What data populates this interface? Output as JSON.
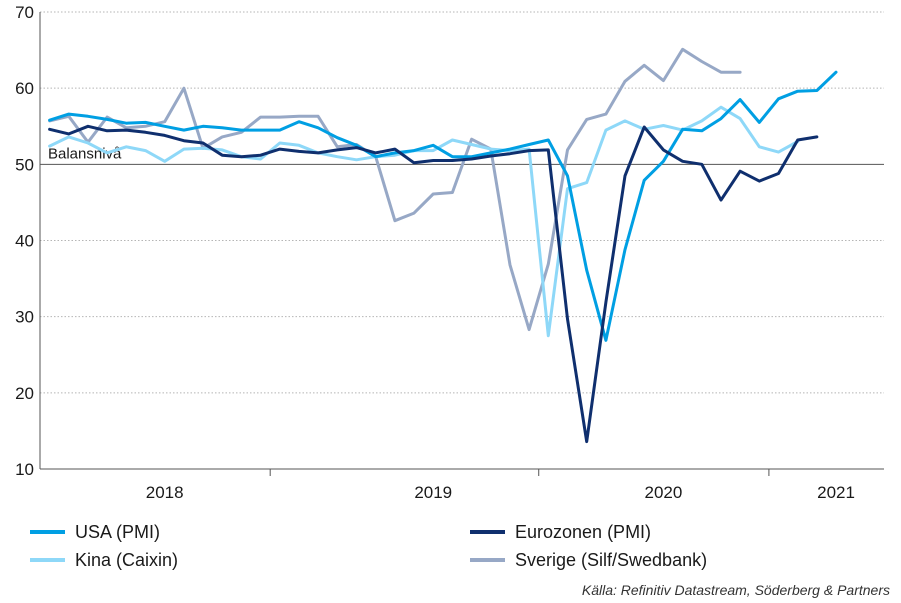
{
  "chart_data": {
    "type": "line",
    "ylim": [
      10,
      70
    ],
    "yticks": [
      10,
      20,
      30,
      40,
      50,
      60,
      70
    ],
    "x_start_month": "2017-10",
    "n_months": 44,
    "year_labels": [
      {
        "label": "2018",
        "center_month": "2018-04"
      },
      {
        "label": "2019",
        "center_month": "2019-06"
      },
      {
        "label": "2020",
        "center_month": "2020-06"
      },
      {
        "label": "2021",
        "center_month": "2021-03"
      }
    ],
    "year_dividers": [
      "2018-10",
      "2019-12",
      "2020-12"
    ],
    "grid": "horizontal dotted",
    "reference_line": {
      "value": 50,
      "label": "Balansnivå"
    },
    "series": [
      {
        "name": "USA (PMI)",
        "color": "#009fe3",
        "values": [
          55.8,
          56.6,
          56.3,
          55.9,
          55.4,
          55.5,
          55.0,
          54.5,
          55.0,
          54.8,
          54.5,
          54.5,
          54.5,
          55.6,
          54.8,
          53.5,
          52.5,
          51.0,
          51.5,
          51.8,
          52.5,
          51.0,
          51.0,
          51.5,
          52.0,
          52.6,
          53.2,
          48.5,
          36.1,
          26.9,
          38.8,
          47.9,
          50.4,
          54.6,
          54.4,
          56.0,
          58.5,
          55.5,
          58.6,
          59.6,
          59.7,
          62.1,
          null,
          null
        ]
      },
      {
        "name": "Eurozonen (PMI)",
        "color": "#0f2f6e",
        "values": [
          54.6,
          54.0,
          55.0,
          54.4,
          54.5,
          54.2,
          53.8,
          53.1,
          52.8,
          51.2,
          51.0,
          51.2,
          52.0,
          51.7,
          51.5,
          51.9,
          52.2,
          51.5,
          52.0,
          50.2,
          50.5,
          50.5,
          50.7,
          51.1,
          51.4,
          51.8,
          51.9,
          29.7,
          13.6,
          31.9,
          48.5,
          54.9,
          51.9,
          50.4,
          50.0,
          45.3,
          49.1,
          47.8,
          48.8,
          53.2,
          53.6,
          null,
          null,
          null
        ]
      },
      {
        "name": "Kina (Caixin)",
        "color": "#8ed8f8",
        "values": [
          52.4,
          53.6,
          52.8,
          51.5,
          52.3,
          51.8,
          50.4,
          52.0,
          52.1,
          51.9,
          51.0,
          50.7,
          52.8,
          52.5,
          51.5,
          51.0,
          50.6,
          51.0,
          51.2,
          51.8,
          51.8,
          53.2,
          52.6,
          52.0,
          51.8,
          52.0,
          27.5,
          46.8,
          47.6,
          54.5,
          55.7,
          54.6,
          55.1,
          54.5,
          55.7,
          57.5,
          56.0,
          52.3,
          51.6,
          53.0,
          null,
          null,
          null,
          null
        ]
      },
      {
        "name": "Sverige (Silf/Swedbank)",
        "color": "#97a8c6",
        "values": [
          55.7,
          56.3,
          52.9,
          56.2,
          54.8,
          55.0,
          55.6,
          60.0,
          52.1,
          53.6,
          54.2,
          56.2,
          56.2,
          56.3,
          56.3,
          52.3,
          52.6,
          51.0,
          42.6,
          43.6,
          46.1,
          46.3,
          53.3,
          52.0,
          36.8,
          28.3,
          36.9,
          51.9,
          55.9,
          56.6,
          60.9,
          63.0,
          61.0,
          65.1,
          63.5,
          62.1,
          62.1,
          null,
          null,
          null,
          null,
          null,
          null,
          null
        ]
      }
    ],
    "source": "Källa: Refinitiv Datastream, Söderberg & Partners"
  }
}
